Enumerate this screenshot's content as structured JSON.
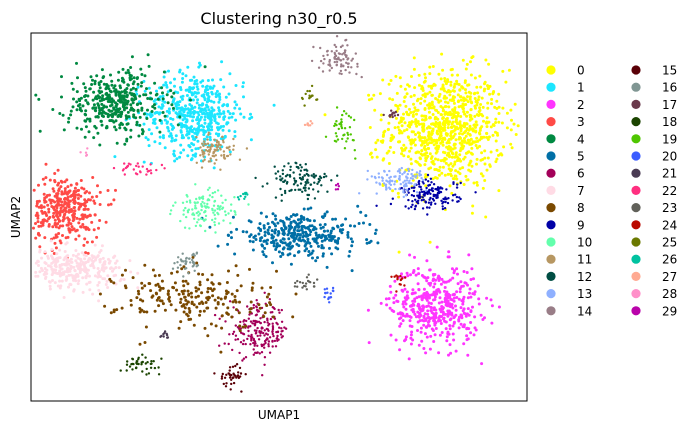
{
  "chart_data": {
    "type": "scatter",
    "title": "Clustering n30_r0.5",
    "xlabel": "UMAP1",
    "ylabel": "UMAP2",
    "xticks": [],
    "yticks": [],
    "grid": false,
    "legend_placement": "right",
    "legend": [
      {
        "label": "0",
        "color": "#ffff00"
      },
      {
        "label": "1",
        "color": "#1ce6ff"
      },
      {
        "label": "2",
        "color": "#ff34ff"
      },
      {
        "label": "3",
        "color": "#ff4a46"
      },
      {
        "label": "4",
        "color": "#008941"
      },
      {
        "label": "5",
        "color": "#006fa6"
      },
      {
        "label": "6",
        "color": "#a30059"
      },
      {
        "label": "7",
        "color": "#ffdbe5"
      },
      {
        "label": "8",
        "color": "#7a4900"
      },
      {
        "label": "9",
        "color": "#0000a6"
      },
      {
        "label": "10",
        "color": "#63ffac"
      },
      {
        "label": "11",
        "color": "#b79762"
      },
      {
        "label": "12",
        "color": "#004d43"
      },
      {
        "label": "13",
        "color": "#8fb0ff"
      },
      {
        "label": "14",
        "color": "#997d87"
      },
      {
        "label": "15",
        "color": "#5a0007"
      },
      {
        "label": "16",
        "color": "#809693"
      },
      {
        "label": "17",
        "color": "#6a3a4c"
      },
      {
        "label": "18",
        "color": "#1b4400"
      },
      {
        "label": "19",
        "color": "#4fc601"
      },
      {
        "label": "20",
        "color": "#3b5dff"
      },
      {
        "label": "21",
        "color": "#4a3b53"
      },
      {
        "label": "22",
        "color": "#ff2f80"
      },
      {
        "label": "23",
        "color": "#61615a"
      },
      {
        "label": "24",
        "color": "#ba0900"
      },
      {
        "label": "25",
        "color": "#6b7900"
      },
      {
        "label": "26",
        "color": "#00c2a0"
      },
      {
        "label": "27",
        "color": "#ffaa92"
      },
      {
        "label": "28",
        "color": "#ff90c9"
      },
      {
        "label": "29",
        "color": "#b903aa"
      }
    ],
    "clusters": [
      {
        "id": "0",
        "center": [
          0.835,
          0.74
        ],
        "spread": [
          0.06,
          0.08
        ],
        "density": 900,
        "shape": "blob"
      },
      {
        "id": "1",
        "center": [
          0.33,
          0.78
        ],
        "spread": [
          0.05,
          0.055
        ],
        "density": 500,
        "shape": "blob"
      },
      {
        "id": "2",
        "center": [
          0.815,
          0.26
        ],
        "spread": [
          0.045,
          0.055
        ],
        "density": 450,
        "shape": "blob"
      },
      {
        "id": "3",
        "center": [
          0.07,
          0.52
        ],
        "spread": [
          0.035,
          0.045
        ],
        "density": 350,
        "shape": "blob"
      },
      {
        "id": "4",
        "center": [
          0.17,
          0.81
        ],
        "spread": [
          0.05,
          0.045
        ],
        "density": 380,
        "shape": "blob"
      },
      {
        "id": "5",
        "center": [
          0.54,
          0.45
        ],
        "spread": [
          0.065,
          0.028
        ],
        "density": 350,
        "shape": "blob"
      },
      {
        "id": "6",
        "center": [
          0.46,
          0.19
        ],
        "spread": [
          0.03,
          0.035
        ],
        "density": 200,
        "shape": "blob"
      },
      {
        "id": "7",
        "center": [
          0.085,
          0.36
        ],
        "spread": [
          0.05,
          0.025
        ],
        "density": 300,
        "shape": "blob"
      },
      {
        "id": "8",
        "center": [
          0.33,
          0.28
        ],
        "spread": [
          0.06,
          0.035
        ],
        "density": 220,
        "shape": "sparse"
      },
      {
        "id": "9",
        "center": [
          0.805,
          0.56
        ],
        "spread": [
          0.03,
          0.02
        ],
        "density": 150,
        "shape": "blob"
      },
      {
        "id": "10",
        "center": [
          0.35,
          0.52
        ],
        "spread": [
          0.03,
          0.025
        ],
        "density": 120,
        "shape": "blob"
      },
      {
        "id": "11",
        "center": [
          0.37,
          0.68
        ],
        "spread": [
          0.02,
          0.018
        ],
        "density": 90,
        "shape": "blob"
      },
      {
        "id": "12",
        "center": [
          0.545,
          0.6
        ],
        "spread": [
          0.03,
          0.025
        ],
        "density": 110,
        "shape": "blob"
      },
      {
        "id": "13",
        "center": [
          0.74,
          0.6
        ],
        "spread": [
          0.03,
          0.018
        ],
        "density": 100,
        "shape": "blob"
      },
      {
        "id": "14",
        "center": [
          0.62,
          0.93
        ],
        "spread": [
          0.02,
          0.02
        ],
        "density": 80,
        "shape": "blob"
      },
      {
        "id": "15",
        "center": [
          0.405,
          0.07
        ],
        "spread": [
          0.012,
          0.015
        ],
        "density": 40,
        "shape": "blob"
      },
      {
        "id": "16",
        "center": [
          0.32,
          0.38
        ],
        "spread": [
          0.015,
          0.015
        ],
        "density": 40,
        "shape": "blob"
      },
      {
        "id": "17",
        "center": [
          0.73,
          0.78
        ],
        "spread": [
          0.008,
          0.006
        ],
        "density": 15,
        "shape": "blob"
      },
      {
        "id": "18",
        "center": [
          0.22,
          0.1
        ],
        "spread": [
          0.02,
          0.01
        ],
        "density": 40,
        "shape": "blob"
      },
      {
        "id": "19",
        "center": [
          0.63,
          0.74
        ],
        "spread": [
          0.012,
          0.03
        ],
        "density": 40,
        "shape": "blob"
      },
      {
        "id": "20",
        "center": [
          0.6,
          0.29
        ],
        "spread": [
          0.008,
          0.008
        ],
        "density": 15,
        "shape": "blob"
      },
      {
        "id": "21",
        "center": [
          0.27,
          0.18
        ],
        "spread": [
          0.008,
          0.006
        ],
        "density": 10,
        "shape": "blob"
      },
      {
        "id": "22",
        "center": [
          0.22,
          0.63
        ],
        "spread": [
          0.02,
          0.01
        ],
        "density": 30,
        "shape": "blob"
      },
      {
        "id": "23",
        "center": [
          0.545,
          0.32
        ],
        "spread": [
          0.015,
          0.01
        ],
        "density": 20,
        "shape": "blob"
      },
      {
        "id": "24",
        "center": [
          0.74,
          0.33
        ],
        "spread": [
          0.008,
          0.012
        ],
        "density": 15,
        "shape": "blob"
      },
      {
        "id": "25",
        "center": [
          0.56,
          0.83
        ],
        "spread": [
          0.008,
          0.015
        ],
        "density": 15,
        "shape": "blob"
      },
      {
        "id": "26",
        "center": [
          0.43,
          0.56
        ],
        "spread": [
          0.01,
          0.006
        ],
        "density": 10,
        "shape": "blob"
      },
      {
        "id": "27",
        "center": [
          0.56,
          0.75
        ],
        "spread": [
          0.005,
          0.005
        ],
        "density": 8,
        "shape": "blob"
      },
      {
        "id": "28",
        "center": [
          0.11,
          0.67
        ],
        "spread": [
          0.005,
          0.005
        ],
        "density": 5,
        "shape": "blob"
      },
      {
        "id": "29",
        "center": [
          0.615,
          0.58
        ],
        "spread": [
          0.005,
          0.005
        ],
        "density": 5,
        "shape": "blob"
      }
    ]
  }
}
